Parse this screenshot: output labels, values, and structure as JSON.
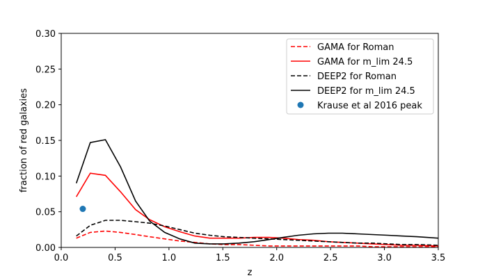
{
  "chart_data": {
    "type": "line",
    "xlabel": "z",
    "ylabel": "fraction of red galaxies",
    "xlim": [
      0.0,
      3.5
    ],
    "ylim": [
      0.0,
      0.3
    ],
    "xticks": [
      "0.0",
      "0.5",
      "1.0",
      "1.5",
      "2.0",
      "2.5",
      "3.0",
      "3.5"
    ],
    "yticks": [
      "0.00",
      "0.05",
      "0.10",
      "0.15",
      "0.20",
      "0.25",
      "0.30"
    ],
    "grid": false,
    "legend_position": "top-right",
    "series": [
      {
        "name": "GAMA for Roman",
        "style": "dashed",
        "color": "#ff0000",
        "x": [
          0.14,
          0.27,
          0.41,
          0.55,
          0.69,
          0.82,
          0.96,
          1.1,
          1.24,
          1.38,
          1.51,
          1.65,
          1.79,
          1.93,
          2.06,
          2.2,
          2.34,
          2.48,
          2.61,
          2.75,
          2.89,
          3.03,
          3.16,
          3.3,
          3.5
        ],
        "y": [
          0.013,
          0.021,
          0.023,
          0.021,
          0.018,
          0.015,
          0.012,
          0.009,
          0.007,
          0.005,
          0.004,
          0.004,
          0.003,
          0.002,
          0.002,
          0.002,
          0.002,
          0.002,
          0.002,
          0.002,
          0.001,
          0.001,
          0.001,
          0.001,
          0.001
        ]
      },
      {
        "name": "GAMA for m_lim 24.5",
        "style": "solid",
        "color": "#ff0000",
        "x": [
          0.14,
          0.27,
          0.41,
          0.55,
          0.69,
          0.82,
          0.96,
          1.1,
          1.24,
          1.38,
          1.51,
          1.65,
          1.79,
          1.93,
          2.06,
          2.2,
          2.34,
          2.48,
          2.61,
          2.75,
          2.89,
          3.03,
          3.16,
          3.3,
          3.5
        ],
        "y": [
          0.071,
          0.104,
          0.101,
          0.078,
          0.053,
          0.039,
          0.029,
          0.022,
          0.016,
          0.013,
          0.013,
          0.013,
          0.014,
          0.014,
          0.013,
          0.011,
          0.01,
          0.008,
          0.007,
          0.006,
          0.005,
          0.004,
          0.003,
          0.003,
          0.002
        ]
      },
      {
        "name": "DEEP2 for Roman",
        "style": "dashed",
        "color": "#000000",
        "x": [
          0.14,
          0.27,
          0.41,
          0.55,
          0.69,
          0.82,
          0.96,
          1.1,
          1.24,
          1.38,
          1.51,
          1.65,
          1.79,
          1.93,
          2.06,
          2.2,
          2.34,
          2.48,
          2.61,
          2.75,
          2.89,
          3.03,
          3.16,
          3.3,
          3.5
        ],
        "y": [
          0.016,
          0.031,
          0.038,
          0.038,
          0.036,
          0.034,
          0.03,
          0.025,
          0.02,
          0.017,
          0.015,
          0.014,
          0.013,
          0.012,
          0.011,
          0.01,
          0.009,
          0.008,
          0.007,
          0.006,
          0.006,
          0.005,
          0.004,
          0.004,
          0.003
        ]
      },
      {
        "name": "DEEP2 for m_lim 24.5",
        "style": "solid",
        "color": "#000000",
        "x": [
          0.14,
          0.27,
          0.41,
          0.55,
          0.69,
          0.82,
          0.96,
          1.1,
          1.24,
          1.38,
          1.51,
          1.65,
          1.79,
          1.93,
          2.06,
          2.2,
          2.34,
          2.48,
          2.61,
          2.75,
          2.89,
          3.03,
          3.16,
          3.3,
          3.5
        ],
        "y": [
          0.09,
          0.147,
          0.151,
          0.113,
          0.065,
          0.037,
          0.021,
          0.012,
          0.006,
          0.005,
          0.005,
          0.006,
          0.008,
          0.011,
          0.014,
          0.017,
          0.019,
          0.02,
          0.02,
          0.019,
          0.018,
          0.017,
          0.016,
          0.015,
          0.013
        ]
      },
      {
        "name": "Krause et al 2016 peak",
        "style": "marker",
        "color": "#1f77b4",
        "x": [
          0.2
        ],
        "y": [
          0.054
        ]
      }
    ]
  }
}
